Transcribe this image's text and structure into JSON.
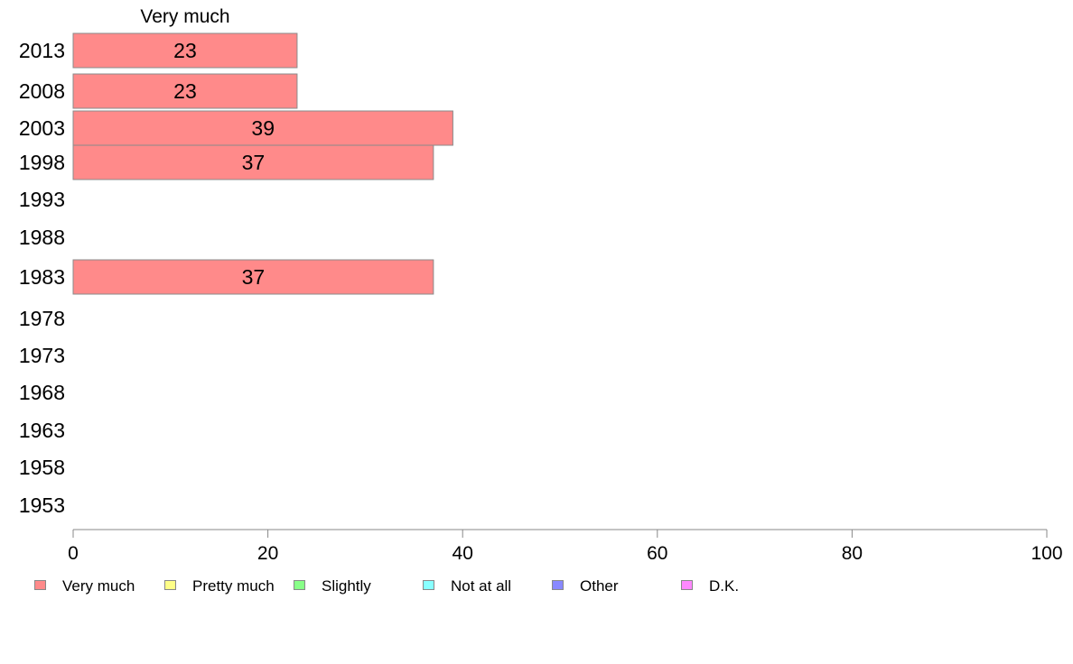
{
  "chart_data": {
    "type": "bar",
    "orientation": "horizontal",
    "title": "Very much",
    "categories": [
      "2013",
      "2008",
      "2003",
      "1998",
      "1993",
      "1988",
      "1983",
      "1978",
      "1973",
      "1968",
      "1963",
      "1958",
      "1953"
    ],
    "series": [
      {
        "name": "Very much",
        "color": "#ff8a8a",
        "values": [
          23,
          23,
          39,
          37,
          null,
          null,
          37,
          null,
          null,
          null,
          null,
          null,
          null
        ]
      }
    ],
    "data_labels": [
      "23",
      "23",
      "39",
      "37",
      "",
      "",
      "37",
      "",
      "",
      "",
      "",
      "",
      ""
    ],
    "xlim": [
      0,
      100
    ],
    "xticks": [
      "0",
      "20",
      "40",
      "60",
      "80",
      "100"
    ],
    "grid": false,
    "legend_position": "bottom"
  },
  "legend": [
    {
      "label": "Very much",
      "color": "#ff8a8a"
    },
    {
      "label": "Pretty much",
      "color": "#ffff88"
    },
    {
      "label": "Slightly",
      "color": "#88ff88"
    },
    {
      "label": "Not at all",
      "color": "#88ffff"
    },
    {
      "label": "Other",
      "color": "#8888ff"
    },
    {
      "label": "D.K.",
      "color": "#ff88ff"
    }
  ]
}
